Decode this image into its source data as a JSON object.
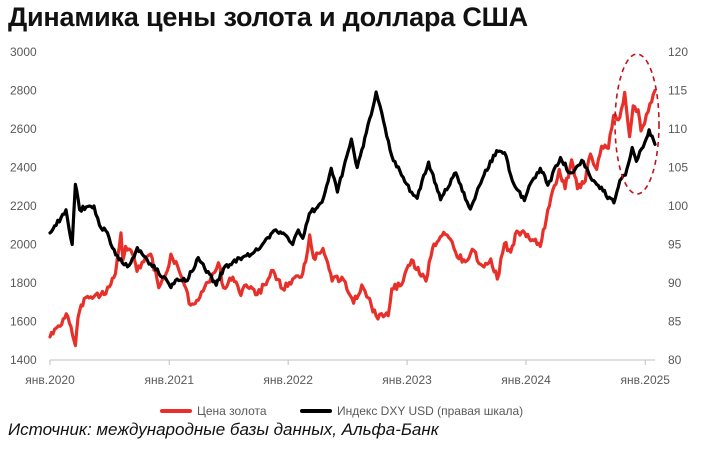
{
  "title": "Динамика цены золота и доллара США",
  "source": "Источник: международные базы данных, Альфа-Банк",
  "chart_data": {
    "type": "line",
    "title": "Динамика цены золота и доллара США",
    "x_range": [
      "2020-01-01",
      "2025-01-31"
    ],
    "x_ticks": [
      {
        "date": "2020-01-01",
        "label": "янв.2020"
      },
      {
        "date": "2021-01-01",
        "label": "янв.2021"
      },
      {
        "date": "2022-01-01",
        "label": "янв.2022"
      },
      {
        "date": "2023-01-01",
        "label": "янв.2023"
      },
      {
        "date": "2024-01-01",
        "label": "янв.2024"
      },
      {
        "date": "2025-01-01",
        "label": "янв.2025"
      }
    ],
    "y_left": {
      "min": 1400,
      "max": 3000,
      "ticks": [
        "1400",
        "1600",
        "1800",
        "2000",
        "2200",
        "2400",
        "2600",
        "2800",
        "3000"
      ]
    },
    "y_right": {
      "min": 80,
      "max": 120,
      "ticks": [
        "80",
        "85",
        "90",
        "95",
        "100",
        "105",
        "110",
        "115",
        "120"
      ]
    },
    "grid": false,
    "legend_position": "bottom",
    "annotation": "dashed red ellipse around late-2024 highs",
    "series": [
      {
        "name": "Цена золота",
        "axis": "left",
        "color": "#e8302a",
        "points": [
          [
            "2020-01-01",
            1520
          ],
          [
            "2020-01-15",
            1560
          ],
          [
            "2020-02-01",
            1575
          ],
          [
            "2020-02-20",
            1640
          ],
          [
            "2020-03-01",
            1590
          ],
          [
            "2020-03-19",
            1475
          ],
          [
            "2020-03-27",
            1620
          ],
          [
            "2020-04-15",
            1720
          ],
          [
            "2020-05-15",
            1730
          ],
          [
            "2020-06-15",
            1740
          ],
          [
            "2020-07-01",
            1780
          ],
          [
            "2020-07-20",
            1850
          ],
          [
            "2020-08-06",
            2060
          ],
          [
            "2020-08-12",
            1920
          ],
          [
            "2020-08-20",
            1990
          ],
          [
            "2020-09-10",
            1950
          ],
          [
            "2020-09-24",
            1860
          ],
          [
            "2020-10-15",
            1910
          ],
          [
            "2020-11-05",
            1950
          ],
          [
            "2020-11-30",
            1775
          ],
          [
            "2020-12-31",
            1890
          ],
          [
            "2021-01-06",
            1950
          ],
          [
            "2021-02-01",
            1860
          ],
          [
            "2021-03-08",
            1685
          ],
          [
            "2021-03-31",
            1710
          ],
          [
            "2021-04-20",
            1780
          ],
          [
            "2021-05-15",
            1850
          ],
          [
            "2021-06-01",
            1905
          ],
          [
            "2021-06-17",
            1775
          ],
          [
            "2021-07-15",
            1830
          ],
          [
            "2021-08-09",
            1735
          ],
          [
            "2021-08-25",
            1790
          ],
          [
            "2021-09-28",
            1740
          ],
          [
            "2021-10-20",
            1790
          ],
          [
            "2021-11-16",
            1865
          ],
          [
            "2021-12-15",
            1770
          ],
          [
            "2022-01-15",
            1820
          ],
          [
            "2022-02-10",
            1830
          ],
          [
            "2022-02-24",
            1910
          ],
          [
            "2022-03-08",
            2050
          ],
          [
            "2022-03-20",
            1930
          ],
          [
            "2022-04-18",
            1980
          ],
          [
            "2022-05-16",
            1810
          ],
          [
            "2022-06-15",
            1830
          ],
          [
            "2022-07-21",
            1695
          ],
          [
            "2022-08-15",
            1790
          ],
          [
            "2022-09-28",
            1630
          ],
          [
            "2022-10-20",
            1625
          ],
          [
            "2022-11-04",
            1630
          ],
          [
            "2022-11-15",
            1770
          ],
          [
            "2022-12-15",
            1790
          ],
          [
            "2023-01-15",
            1920
          ],
          [
            "2023-02-28",
            1810
          ],
          [
            "2023-03-20",
            1980
          ],
          [
            "2023-04-13",
            2040
          ],
          [
            "2023-05-04",
            2050
          ],
          [
            "2023-05-30",
            1960
          ],
          [
            "2023-06-29",
            1910
          ],
          [
            "2023-07-20",
            1975
          ],
          [
            "2023-08-20",
            1890
          ],
          [
            "2023-09-15",
            1925
          ],
          [
            "2023-10-05",
            1820
          ],
          [
            "2023-10-27",
            2005
          ],
          [
            "2023-11-15",
            1960
          ],
          [
            "2023-12-04",
            2070
          ],
          [
            "2023-12-28",
            2060
          ],
          [
            "2024-01-20",
            2025
          ],
          [
            "2024-02-14",
            1990
          ],
          [
            "2024-03-08",
            2180
          ],
          [
            "2024-04-12",
            2390
          ],
          [
            "2024-04-30",
            2290
          ],
          [
            "2024-05-20",
            2440
          ],
          [
            "2024-06-07",
            2290
          ],
          [
            "2024-07-01",
            2330
          ],
          [
            "2024-07-17",
            2470
          ],
          [
            "2024-08-05",
            2390
          ],
          [
            "2024-08-20",
            2510
          ],
          [
            "2024-09-10",
            2500
          ],
          [
            "2024-09-26",
            2670
          ],
          [
            "2024-10-15",
            2660
          ],
          [
            "2024-10-30",
            2790
          ],
          [
            "2024-11-14",
            2560
          ],
          [
            "2024-11-25",
            2720
          ],
          [
            "2024-12-10",
            2700
          ],
          [
            "2024-12-19",
            2590
          ],
          [
            "2025-01-10",
            2690
          ],
          [
            "2025-01-31",
            2800
          ]
        ]
      },
      {
        "name": "Индекс DXY USD (правая шкала)",
        "axis": "right",
        "color": "#000000",
        "points": [
          [
            "2020-01-01",
            96.5
          ],
          [
            "2020-01-20",
            97.5
          ],
          [
            "2020-02-19",
            99.5
          ],
          [
            "2020-03-09",
            95.0
          ],
          [
            "2020-03-19",
            102.8
          ],
          [
            "2020-04-01",
            99.5
          ],
          [
            "2020-05-01",
            100.0
          ],
          [
            "2020-05-15",
            100.0
          ],
          [
            "2020-06-01",
            97.5
          ],
          [
            "2020-06-20",
            96.8
          ],
          [
            "2020-07-31",
            93.0
          ],
          [
            "2020-08-31",
            92.3
          ],
          [
            "2020-09-25",
            94.6
          ],
          [
            "2020-10-15",
            93.5
          ],
          [
            "2020-11-05",
            92.5
          ],
          [
            "2020-12-31",
            89.9
          ],
          [
            "2021-01-06",
            89.4
          ],
          [
            "2021-01-25",
            90.5
          ],
          [
            "2021-02-25",
            90.3
          ],
          [
            "2021-03-31",
            93.3
          ],
          [
            "2021-05-25",
            89.7
          ],
          [
            "2021-06-17",
            91.9
          ],
          [
            "2021-07-15",
            92.7
          ],
          [
            "2021-08-20",
            93.5
          ],
          [
            "2021-09-30",
            94.3
          ],
          [
            "2021-11-24",
            96.9
          ],
          [
            "2021-12-31",
            95.9
          ],
          [
            "2022-01-15",
            95.0
          ],
          [
            "2022-02-01",
            96.9
          ],
          [
            "2022-02-15",
            95.8
          ],
          [
            "2022-03-07",
            99.0
          ],
          [
            "2022-04-15",
            100.5
          ],
          [
            "2022-05-13",
            104.9
          ],
          [
            "2022-06-01",
            101.8
          ],
          [
            "2022-07-14",
            108.7
          ],
          [
            "2022-08-01",
            105.0
          ],
          [
            "2022-08-29",
            109.5
          ],
          [
            "2022-09-28",
            114.8
          ],
          [
            "2022-10-10",
            113.0
          ],
          [
            "2022-11-15",
            106.5
          ],
          [
            "2022-12-15",
            104.0
          ],
          [
            "2023-01-15",
            101.8
          ],
          [
            "2023-02-01",
            101.0
          ],
          [
            "2023-03-08",
            105.7
          ],
          [
            "2023-04-14",
            100.8
          ],
          [
            "2023-05-31",
            104.3
          ],
          [
            "2023-07-14",
            99.6
          ],
          [
            "2023-08-20",
            103.5
          ],
          [
            "2023-10-03",
            107.2
          ],
          [
            "2023-11-01",
            106.5
          ],
          [
            "2023-11-20",
            103.3
          ],
          [
            "2023-12-27",
            100.7
          ],
          [
            "2024-01-20",
            103.3
          ],
          [
            "2024-02-14",
            104.9
          ],
          [
            "2024-03-08",
            102.7
          ],
          [
            "2024-04-16",
            106.3
          ],
          [
            "2024-05-15",
            104.3
          ],
          [
            "2024-06-25",
            105.8
          ],
          [
            "2024-07-17",
            103.7
          ],
          [
            "2024-08-05",
            102.8
          ],
          [
            "2024-09-27",
            100.4
          ],
          [
            "2024-10-15",
            103.3
          ],
          [
            "2024-11-01",
            104.0
          ],
          [
            "2024-11-22",
            107.6
          ],
          [
            "2024-12-05",
            105.8
          ],
          [
            "2024-12-31",
            108.3
          ],
          [
            "2025-01-13",
            109.9
          ],
          [
            "2025-01-31",
            108.0
          ]
        ]
      }
    ]
  }
}
